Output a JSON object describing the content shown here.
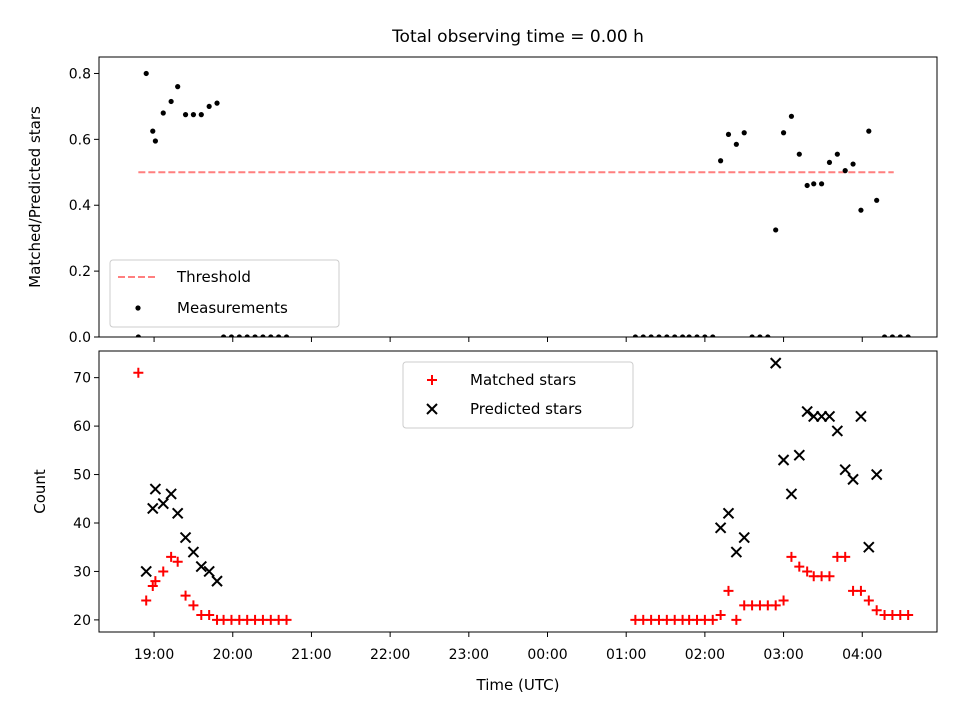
{
  "title": "Total observing time = 0.00 h",
  "chart_data": [
    {
      "type": "scatter",
      "ylabel": "Matched/Predicted stars",
      "xlabel": "",
      "xlim": [
        "18:18",
        "04:57"
      ],
      "ylim": [
        0,
        0.85
      ],
      "yticks": [
        0.0,
        0.2,
        0.4,
        0.6,
        0.8
      ],
      "ytick_labels": [
        "0.0",
        "0.2",
        "0.4",
        "0.6",
        "0.8"
      ],
      "legend_position": "lower-left",
      "threshold": {
        "name": "Threshold",
        "value": 0.5,
        "x": [
          "18:48",
          "04:24"
        ],
        "color": "#ff7f7f"
      },
      "series": [
        {
          "name": "Measurements",
          "color": "#000000",
          "x": [
            "18:48",
            "18:54",
            "18:59",
            "19:01",
            "19:07",
            "19:13",
            "19:18",
            "19:24",
            "19:30",
            "19:36",
            "19:42",
            "19:48",
            "19:53",
            "19:59",
            "20:05",
            "20:11",
            "20:17",
            "20:23",
            "20:29",
            "20:35",
            "20:41",
            "01:07",
            "01:13",
            "01:19",
            "01:25",
            "01:31",
            "01:37",
            "01:43",
            "01:48",
            "01:54",
            "02:00",
            "02:06",
            "02:12",
            "02:18",
            "02:24",
            "02:30",
            "02:36",
            "02:42",
            "02:48",
            "02:54",
            "03:00",
            "03:06",
            "03:12",
            "03:18",
            "03:23",
            "03:29",
            "03:35",
            "03:41",
            "03:47",
            "03:53",
            "03:59",
            "04:05",
            "04:11",
            "04:17",
            "04:23",
            "04:29",
            "04:35"
          ],
          "y": [
            0.0,
            0.8,
            0.625,
            0.595,
            0.68,
            0.715,
            0.76,
            0.675,
            0.675,
            0.675,
            0.7,
            0.71,
            0.0,
            0.0,
            0.0,
            0.0,
            0.0,
            0.0,
            0.0,
            0.0,
            0.0,
            0.0,
            0.0,
            0.0,
            0.0,
            0.0,
            0.0,
            0.0,
            0.0,
            0.0,
            0.0,
            0.0,
            0.535,
            0.615,
            0.585,
            0.62,
            0.0,
            0.0,
            0.0,
            0.325,
            0.62,
            0.67,
            0.555,
            0.46,
            0.465,
            0.465,
            0.53,
            0.555,
            0.505,
            0.525,
            0.385,
            0.625,
            0.415,
            0.0,
            0.0,
            0.0,
            0.0
          ]
        }
      ]
    },
    {
      "type": "scatter",
      "ylabel": "Count",
      "xlabel": "Time (UTC)",
      "xlim": [
        "18:18",
        "04:57"
      ],
      "ylim": [
        17.5,
        75.5
      ],
      "yticks": [
        20,
        30,
        40,
        50,
        60,
        70
      ],
      "ytick_labels": [
        "20",
        "30",
        "40",
        "50",
        "60",
        "70"
      ],
      "xticks": [
        "19:00",
        "20:00",
        "21:00",
        "22:00",
        "23:00",
        "00:00",
        "01:00",
        "02:00",
        "03:00",
        "04:00"
      ],
      "legend_position": "upper-center",
      "series": [
        {
          "name": "Matched stars",
          "marker": "+",
          "color": "#ff0000",
          "x": [
            "18:48",
            "18:54",
            "18:59",
            "19:01",
            "19:07",
            "19:13",
            "19:18",
            "19:24",
            "19:30",
            "19:36",
            "19:42",
            "19:48",
            "19:53",
            "19:59",
            "20:05",
            "20:11",
            "20:17",
            "20:23",
            "20:29",
            "20:35",
            "20:41",
            "01:07",
            "01:13",
            "01:19",
            "01:25",
            "01:31",
            "01:37",
            "01:43",
            "01:48",
            "01:54",
            "02:00",
            "02:06",
            "02:12",
            "02:18",
            "02:24",
            "02:30",
            "02:36",
            "02:42",
            "02:48",
            "02:54",
            "03:00",
            "03:06",
            "03:12",
            "03:18",
            "03:23",
            "03:29",
            "03:35",
            "03:41",
            "03:47",
            "03:53",
            "03:59",
            "04:05",
            "04:11",
            "04:17",
            "04:23",
            "04:29",
            "04:35"
          ],
          "y": [
            71,
            24,
            27,
            28,
            30,
            33,
            32,
            25,
            23,
            21,
            21,
            20,
            20,
            20,
            20,
            20,
            20,
            20,
            20,
            20,
            20,
            20,
            20,
            20,
            20,
            20,
            20,
            20,
            20,
            20,
            20,
            20,
            21,
            26,
            20,
            23,
            23,
            23,
            23,
            23,
            24,
            33,
            31,
            30,
            29,
            29,
            29,
            33,
            33,
            26,
            26,
            24,
            22,
            21,
            21,
            21,
            21
          ]
        },
        {
          "name": "Predicted stars",
          "marker": "x",
          "color": "#000000",
          "x": [
            "18:54",
            "18:59",
            "19:01",
            "19:07",
            "19:13",
            "19:18",
            "19:24",
            "19:30",
            "19:36",
            "19:42",
            "19:48",
            "02:12",
            "02:18",
            "02:24",
            "02:30",
            "02:54",
            "03:00",
            "03:06",
            "03:12",
            "03:18",
            "03:23",
            "03:29",
            "03:35",
            "03:41",
            "03:47",
            "03:53",
            "03:59",
            "04:05",
            "04:11"
          ],
          "y": [
            30,
            43,
            47,
            44,
            46,
            42,
            37,
            34,
            31,
            30,
            28,
            39,
            42,
            34,
            37,
            73,
            53,
            46,
            54,
            63,
            62,
            62,
            62,
            59,
            51,
            49,
            62,
            35,
            50
          ]
        }
      ]
    }
  ]
}
